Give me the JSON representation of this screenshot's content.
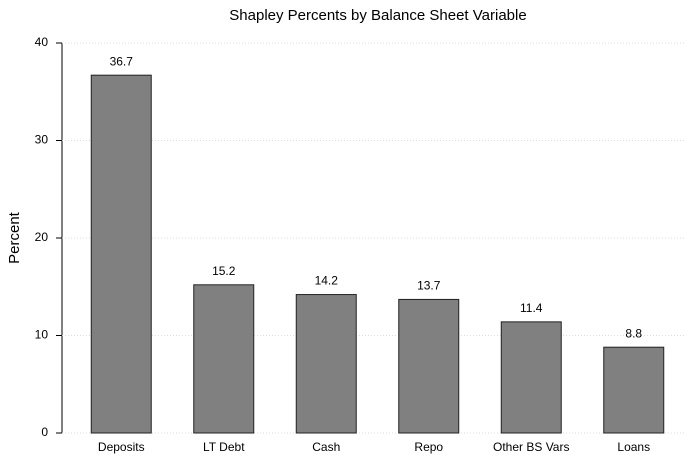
{
  "chart_data": {
    "type": "bar",
    "title": "Shapley Percents by Balance Sheet Variable",
    "y_label": "Percent",
    "categories": [
      "Deposits",
      "LT Debt",
      "Cash",
      "Repo",
      "Other BS Vars",
      "Loans"
    ],
    "values": [
      36.7,
      15.2,
      14.2,
      13.7,
      11.4,
      8.8
    ],
    "color": "#808080",
    "ylim": [
      0,
      40
    ],
    "yticks": [
      0,
      10,
      20,
      30,
      40
    ],
    "grid": true
  }
}
